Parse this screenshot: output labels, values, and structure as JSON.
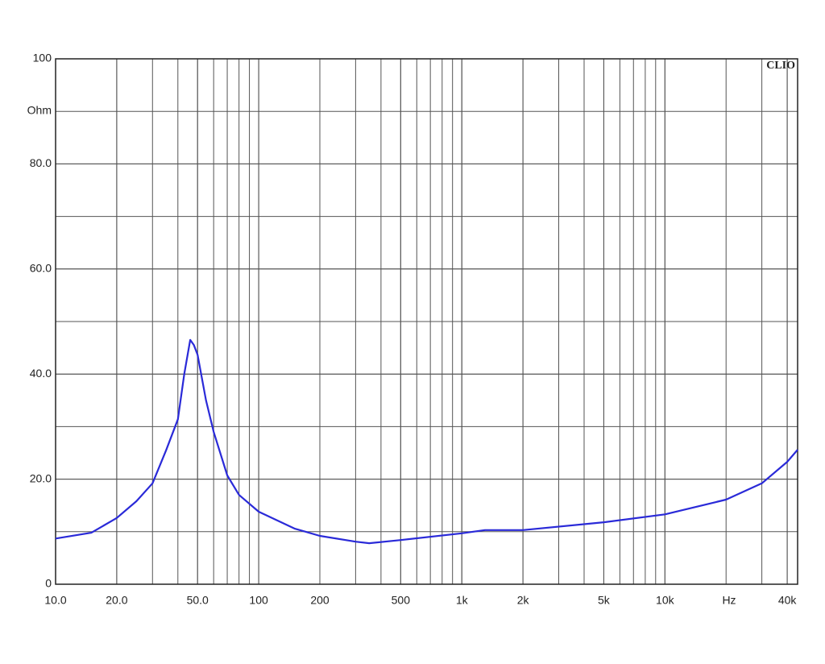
{
  "chart_data": {
    "type": "line",
    "brand": "CLIO",
    "y_label": "Ohm",
    "x_label": "Hz",
    "log_x": true,
    "grid": true,
    "color": "#2a2ad8",
    "xlim": [
      10,
      45000
    ],
    "ylim": [
      0,
      100
    ],
    "xticks": [
      {
        "value": 10,
        "label": "10.0"
      },
      {
        "value": 20,
        "label": "20.0"
      },
      {
        "value": 50,
        "label": "50.0"
      },
      100,
      200,
      500,
      {
        "value": 1000,
        "label": "1k"
      },
      {
        "value": 2000,
        "label": "2k"
      },
      {
        "value": 5000,
        "label": "5k"
      },
      {
        "value": 10000,
        "label": "10k"
      },
      {
        "value": 40000,
        "label": "40k"
      }
    ],
    "yticks": [
      0,
      {
        "value": 20,
        "label": "20.0"
      },
      {
        "value": 40,
        "label": "40.0"
      },
      {
        "value": 60,
        "label": "60.0"
      },
      {
        "value": 80,
        "label": "80.0"
      },
      100
    ],
    "x": [
      10,
      15,
      20,
      25,
      30,
      35,
      40,
      43,
      46,
      48,
      50,
      55,
      60,
      70,
      80,
      100,
      150,
      200,
      300,
      350,
      500,
      1000,
      1300,
      2000,
      5000,
      10000,
      20000,
      30000,
      40000,
      45000
    ],
    "values": [
      8.7,
      9.8,
      12.6,
      15.8,
      19.2,
      25.5,
      31.4,
      40,
      46.5,
      45.5,
      43.7,
      35,
      29,
      20.7,
      17,
      13.8,
      10.6,
      9.2,
      8.1,
      7.8,
      8.4,
      9.7,
      10.3,
      10.3,
      11.8,
      13.3,
      16.1,
      19.2,
      23.3,
      25.6
    ]
  }
}
